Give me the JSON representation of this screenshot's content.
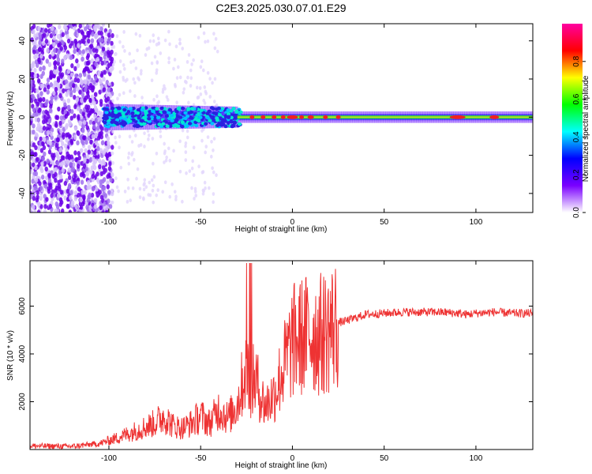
{
  "title": "C2E3.2025.030.07.01.E29",
  "chart_data": [
    {
      "type": "heatmap",
      "xlabel": "Height of straight line (km)",
      "ylabel": "Frequency (Hz)",
      "xlim": [
        -143,
        131
      ],
      "ylim": [
        -50,
        49
      ],
      "x_ticks": [
        -100,
        -50,
        0,
        50,
        100
      ],
      "y_ticks": [
        -40,
        -20,
        0,
        20,
        40
      ],
      "colorbar": {
        "label": "Normalized spectral amplitude",
        "range": [
          0,
          1
        ],
        "ticks": [
          0.0,
          0.2,
          0.4,
          0.6,
          0.8
        ],
        "colors": [
          "#ffffff",
          "#7a00ff",
          "#0000ff",
          "#00ffff",
          "#00ff00",
          "#ffff00",
          "#ff0000",
          "#ff00a0"
        ]
      }
    },
    {
      "type": "line",
      "xlabel": "Height of straight line (km)",
      "ylabel": "SNR (10 * v/v)",
      "xlim": [
        -143,
        131
      ],
      "ylim": [
        0,
        7900
      ],
      "x_ticks": [
        -100,
        -50,
        0,
        50,
        100
      ],
      "y_ticks": [
        2000,
        4000,
        6000
      ],
      "color": "#ee3333",
      "x": [
        -143,
        -120,
        -105,
        -95,
        -85,
        -75,
        -70,
        -65,
        -60,
        -55,
        -50,
        -45,
        -40,
        -35,
        -30,
        -27,
        -25,
        -23,
        -20,
        -15,
        -10,
        -5,
        0,
        5,
        10,
        15,
        20,
        25,
        30,
        40,
        50,
        60,
        70,
        80,
        90,
        95,
        100,
        110,
        120,
        131
      ],
      "y": [
        150,
        130,
        250,
        500,
        800,
        1100,
        1400,
        1000,
        900,
        1100,
        1400,
        1100,
        1700,
        1300,
        1900,
        2900,
        3500,
        2800,
        2900,
        1800,
        2300,
        3400,
        4500,
        4700,
        4900,
        4800,
        5000,
        5300,
        5400,
        5650,
        5700,
        5750,
        5750,
        5750,
        5700,
        5650,
        5700,
        5750,
        5700,
        5700
      ]
    }
  ]
}
